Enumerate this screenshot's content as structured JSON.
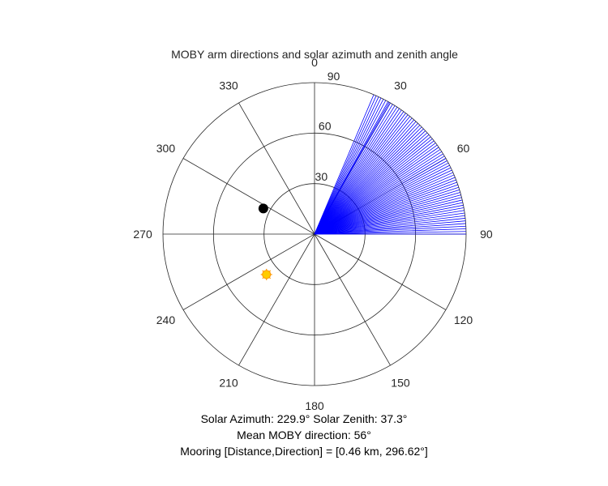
{
  "chart_data": {
    "type": "polar",
    "title": "MOBY arm directions and solar azimuth and zenith angle",
    "theta_direction": "clockwise",
    "theta_zero": "top",
    "theta_ticks": [
      0,
      30,
      60,
      90,
      120,
      150,
      180,
      210,
      240,
      270,
      300,
      330
    ],
    "r_lim": [
      0,
      90
    ],
    "r_ticks": [
      30,
      60,
      90
    ],
    "grid": true,
    "series": [
      {
        "kind": "arm_directions",
        "color": "#0000ff",
        "r": 90,
        "theta_deg": [
          23,
          24,
          25,
          26,
          27,
          28,
          29,
          29.5,
          30,
          31,
          32,
          33,
          34,
          35,
          36,
          37,
          38,
          39,
          40,
          41,
          42,
          43,
          44,
          45,
          46,
          47,
          48,
          49,
          50,
          51,
          52,
          53,
          54,
          55,
          56,
          57,
          58,
          59,
          60,
          61,
          62,
          63,
          64,
          65,
          66,
          67,
          68,
          69,
          70,
          71,
          72,
          73,
          74,
          75,
          76,
          77,
          78,
          79,
          80,
          81,
          82,
          83,
          84,
          85,
          86,
          87,
          88,
          89,
          90
        ]
      },
      {
        "kind": "mooring_position",
        "color": "#000000",
        "marker": "filled-circle",
        "theta_deg": 296.62,
        "r": 34
      },
      {
        "kind": "sun_position",
        "color": "#ffcc00",
        "marker": "sun",
        "theta_deg": 229.9,
        "r": 37.3
      }
    ],
    "caption": {
      "solar": "Solar Azimuth: 229.9°    Solar Zenith: 37.3°",
      "mean": "Mean MOBY direction: 56°",
      "mooring": "Mooring [Distance,Direction] = [0.46 km, 296.62°]"
    }
  }
}
